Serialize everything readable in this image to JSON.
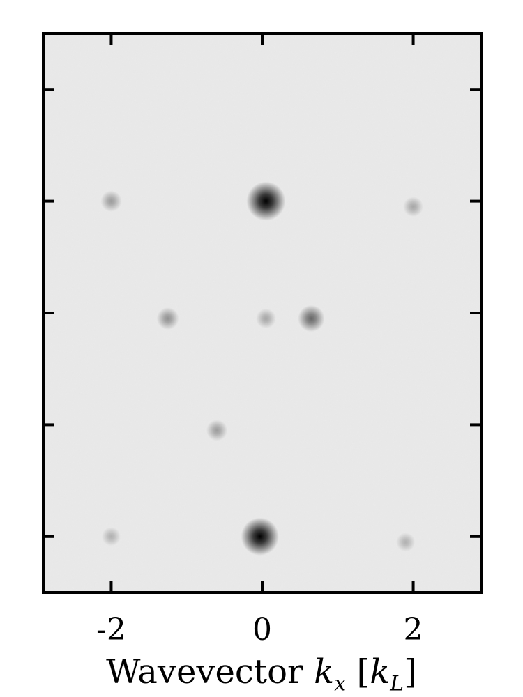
{
  "chart_data": {
    "type": "heatmap",
    "title": "",
    "xlabel": "Wavevector",
    "xlabel_math": {
      "k": "k",
      "x": "x",
      "unit_k": "k",
      "unit_sub": "L"
    },
    "ylabel": "",
    "xlim": [
      -2.9,
      2.9
    ],
    "ylim": [
      -2.5,
      2.5
    ],
    "x_ticks": [
      -2,
      0,
      2
    ],
    "x_tick_labels": [
      "-2",
      "0",
      "2"
    ],
    "y_ticks": [
      -2,
      -1,
      0,
      1,
      2
    ],
    "colormap": "grayscale",
    "background_level": 0.1,
    "peaks": [
      {
        "x": 0.05,
        "y": 1.0,
        "intensity": 1.0
      },
      {
        "x": -0.03,
        "y": -2.0,
        "intensity": 0.95
      },
      {
        "x": 0.65,
        "y": -0.05,
        "intensity": 0.45
      },
      {
        "x": -1.25,
        "y": -0.05,
        "intensity": 0.25
      },
      {
        "x": 0.05,
        "y": -0.05,
        "intensity": 0.15
      },
      {
        "x": -2.0,
        "y": 1.0,
        "intensity": 0.2
      },
      {
        "x": 2.0,
        "y": 0.95,
        "intensity": 0.15
      },
      {
        "x": -0.6,
        "y": -1.05,
        "intensity": 0.2
      },
      {
        "x": -2.0,
        "y": -2.0,
        "intensity": 0.1
      },
      {
        "x": 1.9,
        "y": -2.05,
        "intensity": 0.1
      }
    ],
    "grid": false,
    "legend": "none"
  }
}
